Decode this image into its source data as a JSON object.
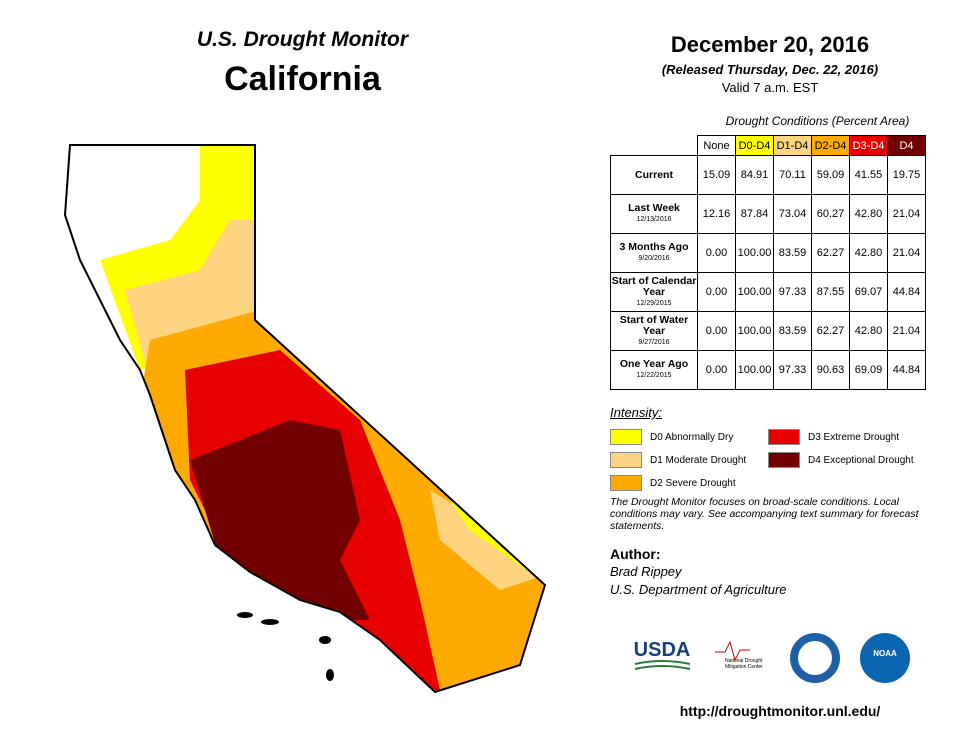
{
  "header": {
    "title": "U.S. Drought Monitor",
    "region": "California"
  },
  "date": {
    "title": "December 20, 2016",
    "released": "(Released Thursday, Dec. 22, 2016)",
    "valid": "Valid 7 a.m. EST"
  },
  "table": {
    "caption": "Drought Conditions (Percent Area)",
    "columns": [
      {
        "label": "None",
        "color": "#ffffff",
        "text_color": "#000000"
      },
      {
        "label": "D0-D4",
        "color": "#ffff00",
        "text_color": "#000000"
      },
      {
        "label": "D1-D4",
        "color": "#fcd37f",
        "text_color": "#000000"
      },
      {
        "label": "D2-D4",
        "color": "#ffaa00",
        "text_color": "#000000"
      },
      {
        "label": "D3-D4",
        "color": "#e60000",
        "text_color": "#ffffff"
      },
      {
        "label": "D4",
        "color": "#730000",
        "text_color": "#ffffff"
      }
    ],
    "rows": [
      {
        "label": "Current",
        "values": [
          "15.09",
          "84.91",
          "70.11",
          "59.09",
          "41.55",
          "19.75"
        ]
      },
      {
        "label": "Last Week",
        "date": "12/13/2016",
        "values": [
          "12.16",
          "87.84",
          "73.04",
          "60.27",
          "42.80",
          "21.04"
        ]
      },
      {
        "label": "3 Months Ago",
        "date": "9/20/2016",
        "values": [
          "0.00",
          "100.00",
          "83.59",
          "62.27",
          "42.80",
          "21.04"
        ]
      },
      {
        "label": "Start of Calendar Year",
        "date": "12/29/2015",
        "values": [
          "0.00",
          "100.00",
          "97.33",
          "87.55",
          "69.07",
          "44.84"
        ]
      },
      {
        "label": "Start of Water Year",
        "date": "9/27/2016",
        "values": [
          "0.00",
          "100.00",
          "83.59",
          "62.27",
          "42.80",
          "21.04"
        ]
      },
      {
        "label": "One Year Ago",
        "date": "12/22/2015",
        "values": [
          "0.00",
          "100.00",
          "97.33",
          "90.63",
          "69.09",
          "44.84"
        ]
      }
    ]
  },
  "legend": {
    "title": "Intensity:",
    "items": [
      {
        "label": "D0 Abnormally Dry",
        "color": "#ffff00"
      },
      {
        "label": "D1 Moderate Drought",
        "color": "#fcd37f"
      },
      {
        "label": "D2 Severe Drought",
        "color": "#ffaa00"
      },
      {
        "label": "D3 Extreme Drought",
        "color": "#e60000"
      },
      {
        "label": "D4 Exceptional Drought",
        "color": "#730000"
      }
    ]
  },
  "note": "The Drought Monitor focuses on broad-scale conditions. Local conditions may vary. See accompanying text summary for forecast statements.",
  "author": {
    "heading": "Author:",
    "name": "Brad Rippey",
    "organization": "U.S. Department of Agriculture"
  },
  "logos": {
    "usda": "USDA",
    "ndmc": "National Drought Mitigation Center",
    "noaa": "NOAA"
  },
  "url": "http://droughtmonitor.unl.edu/"
}
